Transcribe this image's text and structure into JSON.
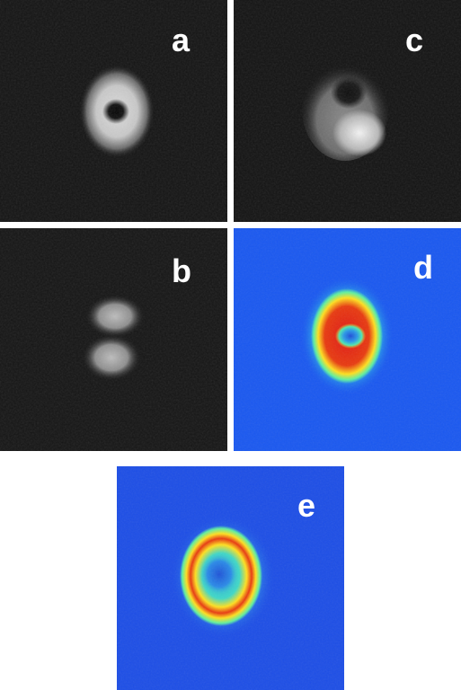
{
  "panels": [
    {
      "id": "a",
      "label": "a"
    },
    {
      "id": "b",
      "label": "b"
    },
    {
      "id": "c",
      "label": "c"
    },
    {
      "id": "d",
      "label": "d"
    },
    {
      "id": "e",
      "label": "e"
    }
  ],
  "colors": {
    "background": "#ffffff",
    "grayscale_background": "#141414",
    "false_color_low": "#1a58f0",
    "false_color_mid": "#3fe0c8",
    "false_color_high_yellow": "#ffe020",
    "false_color_peak": "#e01818"
  }
}
